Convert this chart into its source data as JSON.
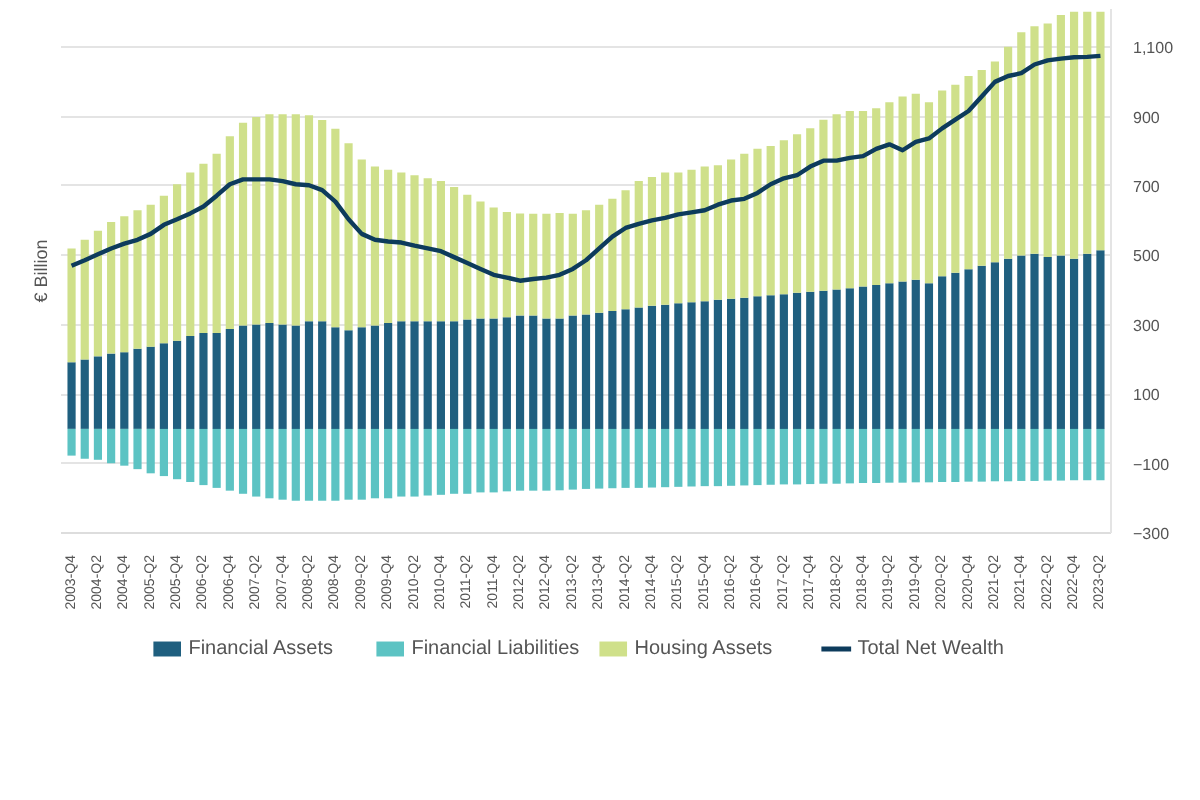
{
  "chart_data": {
    "type": "bar",
    "stacked": true,
    "ylabel": "€ Billion",
    "categories": [
      "2003-Q4",
      null,
      "2004-Q2",
      null,
      "2004-Q4",
      null,
      "2005-Q2",
      null,
      "2005-Q4",
      null,
      "2006-Q2",
      null,
      "2006-Q4",
      null,
      "2007-Q2",
      null,
      "2007-Q4",
      null,
      "2008-Q2",
      null,
      "2008-Q4",
      null,
      "2009-Q2",
      null,
      "2009-Q4",
      null,
      "2010-Q2",
      null,
      "2010-Q4",
      null,
      "2011-Q2",
      null,
      "2011-Q4",
      null,
      "2012-Q2",
      null,
      "2012-Q4",
      null,
      "2013-Q2",
      null,
      "2013-Q4",
      null,
      "2014-Q2",
      null,
      "2014-Q4",
      null,
      "2015-Q2",
      null,
      "2015-Q4",
      null,
      "2016-Q2",
      null,
      "2016-Q4",
      null,
      "2017-Q2",
      null,
      "2017-Q4",
      null,
      "2018-Q2",
      null,
      "2018-Q4",
      null,
      "2019-Q2",
      null,
      "2019-Q4",
      null,
      "2020-Q2",
      null,
      "2020-Q4",
      null,
      "2021-Q2",
      null,
      "2021-Q4",
      null,
      "2022-Q2",
      null,
      "2022-Q4",
      null,
      "2023-Q2"
    ],
    "series": [
      {
        "name": "Financial Assets",
        "color": "#1f5f7f",
        "values": [
          192,
          200,
          209,
          217,
          221,
          231,
          237,
          247,
          254,
          268,
          276,
          276,
          288,
          298,
          301,
          305,
          301,
          298,
          310,
          310,
          293,
          284,
          293,
          298,
          305,
          310,
          310,
          310,
          310,
          310,
          315,
          318,
          318,
          322,
          327,
          327,
          318,
          318,
          327,
          330,
          335,
          340,
          345,
          350,
          355,
          358,
          362,
          365,
          368,
          372,
          375,
          378,
          382,
          385,
          388,
          392,
          395,
          398,
          402,
          405,
          410,
          415,
          420,
          425,
          430,
          420,
          440,
          450,
          460,
          470,
          480,
          490,
          500,
          505,
          495,
          500,
          490,
          505,
          515
        ]
      },
      {
        "name": "Financial Liabilities",
        "color": "#5cc3c3",
        "values": [
          -77,
          -86,
          -89,
          -99,
          -106,
          -116,
          -128,
          -136,
          -145,
          -153,
          -162,
          -170,
          -178,
          -187,
          -195,
          -200,
          -204,
          -207,
          -207,
          -207,
          -207,
          -204,
          -204,
          -200,
          -200,
          -195,
          -195,
          -192,
          -190,
          -187,
          -187,
          -183,
          -183,
          -180,
          -178,
          -178,
          -178,
          -177,
          -175,
          -173,
          -172,
          -171,
          -170,
          -170,
          -169,
          -168,
          -167,
          -166,
          -165,
          -165,
          -164,
          -163,
          -162,
          -161,
          -160,
          -160,
          -159,
          -158,
          -158,
          -157,
          -156,
          -156,
          -155,
          -155,
          -154,
          -154,
          -153,
          -153,
          -152,
          -152,
          -151,
          -151,
          -150,
          -150,
          -149,
          -149,
          -148,
          -148,
          -148
        ]
      },
      {
        "name": "Housing Assets",
        "color": "#cfe08a",
        "values": [
          328,
          345,
          362,
          379,
          392,
          399,
          409,
          425,
          451,
          471,
          488,
          517,
          555,
          584,
          598,
          602,
          606,
          609,
          594,
          580,
          572,
          539,
          483,
          458,
          442,
          429,
          421,
          412,
          404,
          387,
          360,
          337,
          320,
          303,
          294,
          293,
          302,
          304,
          293,
          300,
          311,
          323,
          343,
          364,
          371,
          381,
          377,
          382,
          388,
          388,
          401,
          415,
          425,
          430,
          444,
          457,
          471,
          493,
          505,
          511,
          506,
          509,
          521,
          533,
          536,
          521,
          535,
          542,
          557,
          564,
          579,
          611,
          643,
          655,
          673,
          693,
          712,
          697,
          687
        ]
      },
      {
        "name": "Total Net Wealth",
        "type": "line",
        "color": "#0d3b5c",
        "values": [
          470,
          486,
          503,
          520,
          534,
          545,
          562,
          588,
          604,
          621,
          641,
          672,
          705,
          719,
          719,
          719,
          714,
          705,
          702,
          688,
          655,
          604,
          562,
          545,
          540,
          537,
          528,
          520,
          512,
          495,
          478,
          461,
          444,
          436,
          427,
          432,
          436,
          444,
          461,
          486,
          520,
          554,
          579,
          591,
          601,
          608,
          618,
          624,
          630,
          646,
          658,
          663,
          680,
          705,
          722,
          731,
          756,
          773,
          773,
          781,
          786,
          807,
          820,
          803,
          827,
          837,
          866,
          891,
          916,
          958,
          1000,
          1017,
          1025,
          1050,
          1062,
          1067,
          1071,
          1072,
          1075
        ]
      }
    ],
    "ylim": [
      -300,
      1210
    ],
    "yticks": [
      -300,
      -100,
      100,
      300,
      500,
      700,
      900,
      {
        "value": 1100,
        "label": "1,100"
      }
    ],
    "grid": "y",
    "legend": "bottom",
    "line_style": "solid",
    "marker": "none"
  }
}
